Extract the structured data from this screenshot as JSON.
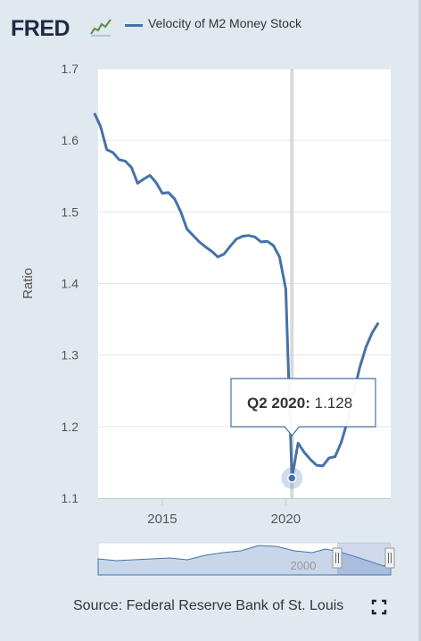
{
  "header": {
    "logo_text": "FRED",
    "logo_icon": "line-chart-icon",
    "legend_label": "Velocity of M2 Money Stock",
    "legend_color": "#4572a7"
  },
  "chart_data": {
    "type": "line",
    "title": "",
    "ylabel": "Ratio",
    "xlabel": "",
    "xlim": [
      2012.4,
      2024.25
    ],
    "ylim": [
      1.1,
      1.7
    ],
    "y_ticks": [
      1.1,
      1.2,
      1.3,
      1.4,
      1.5,
      1.6,
      1.7
    ],
    "y_tick_labels": [
      "1.1",
      "1.2",
      "1.3",
      "1.4",
      "1.5",
      "1.6",
      "1.7"
    ],
    "x_ticks": [
      2015,
      2020
    ],
    "x_tick_labels": [
      "2015",
      "2020"
    ],
    "grid": "horizontal",
    "series": [
      {
        "name": "Velocity of M2 Money Stock",
        "color": "#4572a7",
        "x": [
          "2012-Q2",
          "2012-Q3",
          "2012-Q4",
          "2013-Q1",
          "2013-Q2",
          "2013-Q3",
          "2013-Q4",
          "2014-Q1",
          "2014-Q2",
          "2014-Q3",
          "2014-Q4",
          "2015-Q1",
          "2015-Q2",
          "2015-Q3",
          "2015-Q4",
          "2016-Q1",
          "2016-Q2",
          "2016-Q3",
          "2016-Q4",
          "2017-Q1",
          "2017-Q2",
          "2017-Q3",
          "2017-Q4",
          "2018-Q1",
          "2018-Q2",
          "2018-Q3",
          "2018-Q4",
          "2019-Q1",
          "2019-Q2",
          "2019-Q3",
          "2019-Q4",
          "2020-Q1",
          "2020-Q2",
          "2020-Q3",
          "2020-Q4",
          "2021-Q1",
          "2021-Q2",
          "2021-Q3",
          "2021-Q4",
          "2022-Q1",
          "2022-Q2",
          "2022-Q3",
          "2022-Q4",
          "2023-Q1",
          "2023-Q2",
          "2023-Q3",
          "2023-Q4"
        ],
        "values": [
          1.638,
          1.619,
          1.587,
          1.583,
          1.573,
          1.571,
          1.562,
          1.54,
          1.546,
          1.551,
          1.541,
          1.526,
          1.527,
          1.518,
          1.5,
          1.476,
          1.467,
          1.458,
          1.451,
          1.445,
          1.437,
          1.441,
          1.452,
          1.462,
          1.466,
          1.467,
          1.465,
          1.458,
          1.459,
          1.453,
          1.437,
          1.392,
          1.128,
          1.177,
          1.164,
          1.154,
          1.146,
          1.145,
          1.156,
          1.158,
          1.178,
          1.208,
          1.247,
          1.283,
          1.311,
          1.331,
          1.345
        ]
      }
    ],
    "tooltip": {
      "period": "Q2 2020:",
      "value": "1.128",
      "x": "2020-Q2"
    },
    "navigator": {
      "year_label": "2000"
    }
  },
  "footer": {
    "source_text": "Source: Federal Reserve Bank of St. Louis",
    "fullscreen_icon": "fullscreen-icon"
  }
}
